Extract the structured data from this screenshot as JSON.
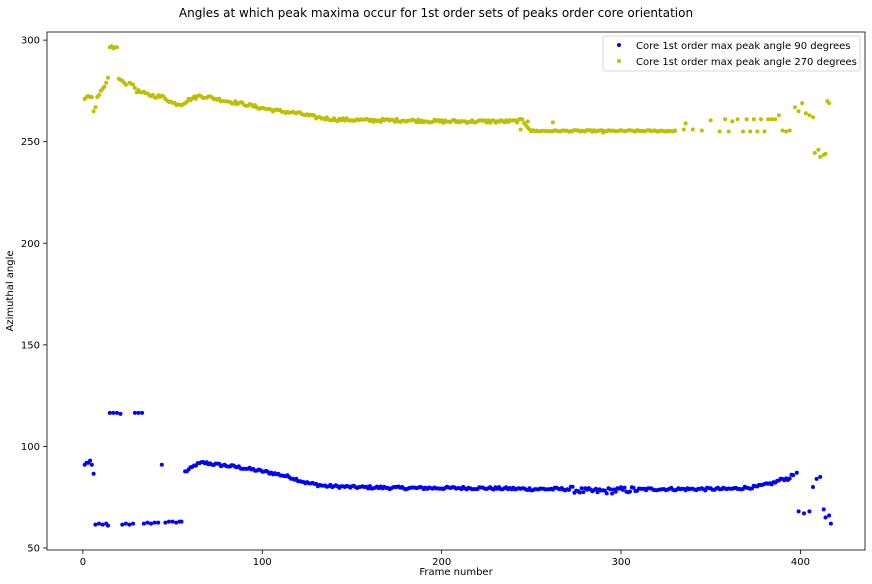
{
  "chart_data": {
    "type": "scatter",
    "title": "Angles at which peak maxima occur for 1st order sets of peaks order core orientation",
    "xlabel": "Frame number",
    "ylabel": "Azimuthal angle",
    "xlim": [
      -20,
      436
    ],
    "ylim": [
      49,
      304
    ],
    "xticks": [
      0,
      100,
      200,
      300,
      400
    ],
    "yticks": [
      50,
      100,
      150,
      200,
      250,
      300
    ],
    "legend_position": "top-right",
    "grid": false,
    "series": [
      {
        "name": "Core 1st order max peak angle 90 degrees",
        "color": "#0000ff",
        "keypoints": [
          [
            1,
            91
          ],
          [
            2,
            92
          ],
          [
            4,
            93
          ],
          [
            5,
            91
          ],
          [
            6,
            86.5
          ],
          [
            7,
            61.5
          ],
          [
            9,
            62
          ],
          [
            11,
            61.5
          ],
          [
            13,
            62
          ],
          [
            14,
            61
          ],
          [
            15,
            116.5
          ],
          [
            17,
            116.5
          ],
          [
            19,
            116.5
          ],
          [
            21,
            116
          ],
          [
            22,
            61.5
          ],
          [
            24,
            62
          ],
          [
            26,
            61.5
          ],
          [
            28,
            62
          ],
          [
            29,
            116.5
          ],
          [
            31,
            116.5
          ],
          [
            33,
            116.5
          ],
          [
            34,
            62
          ],
          [
            40,
            62.5
          ],
          [
            44,
            91
          ],
          [
            46,
            62.5
          ],
          [
            50,
            63
          ],
          [
            55,
            63
          ],
          [
            57,
            87.5
          ],
          [
            60,
            89
          ],
          [
            63,
            91
          ],
          [
            67,
            92
          ],
          [
            75,
            91
          ],
          [
            85,
            90
          ],
          [
            95,
            88.5
          ],
          [
            105,
            87
          ],
          [
            115,
            85
          ],
          [
            125,
            82
          ],
          [
            135,
            80.5
          ],
          [
            150,
            80
          ],
          [
            180,
            79.5
          ],
          [
            220,
            79.5
          ],
          [
            250,
            79
          ],
          [
            270,
            79
          ],
          [
            280,
            78
          ],
          [
            290,
            78
          ],
          [
            300,
            78.5
          ],
          [
            320,
            79
          ],
          [
            360,
            79
          ],
          [
            375,
            80
          ],
          [
            385,
            82
          ],
          [
            390,
            84
          ],
          [
            393,
            84
          ],
          [
            396,
            86
          ],
          [
            398,
            87
          ],
          [
            399,
            68
          ],
          [
            402,
            67
          ],
          [
            405,
            68
          ],
          [
            407,
            80
          ],
          [
            409,
            84
          ],
          [
            411,
            85
          ],
          [
            413,
            69
          ],
          [
            414,
            65
          ],
          [
            416,
            66
          ],
          [
            417,
            62
          ]
        ],
        "samples": [
          [
            1,
            91
          ],
          [
            2,
            92
          ],
          [
            3,
            92
          ],
          [
            4,
            93
          ],
          [
            5,
            91
          ],
          [
            6,
            86.5
          ],
          [
            7,
            61.5
          ],
          [
            9,
            62
          ],
          [
            11,
            61.5
          ],
          [
            13,
            62
          ],
          [
            14,
            61
          ],
          [
            15,
            116.5
          ],
          [
            17,
            116.5
          ],
          [
            19,
            116.5
          ],
          [
            21,
            116
          ],
          [
            22,
            61.5
          ],
          [
            24,
            62
          ],
          [
            26,
            61.5
          ],
          [
            28,
            62
          ],
          [
            29,
            116.5
          ],
          [
            31,
            116.5
          ],
          [
            33,
            116.5
          ],
          [
            34,
            62
          ],
          [
            36,
            62.5
          ],
          [
            38,
            62
          ],
          [
            40,
            62.5
          ],
          [
            42,
            62.5
          ],
          [
            44,
            91
          ],
          [
            46,
            62.5
          ],
          [
            48,
            63
          ],
          [
            50,
            63
          ],
          [
            52,
            62.5
          ],
          [
            54,
            63
          ],
          [
            55,
            63
          ]
        ]
      },
      {
        "name": "Core 1st order max peak angle 270 degrees",
        "color": "#bfbf00",
        "keypoints": [
          [
            1,
            271
          ],
          [
            3,
            272.5
          ],
          [
            5,
            272
          ],
          [
            6,
            265
          ],
          [
            7,
            267
          ],
          [
            8,
            272
          ],
          [
            10,
            275
          ],
          [
            12,
            277
          ],
          [
            14,
            281.5
          ],
          [
            15,
            296.5
          ],
          [
            17,
            296
          ],
          [
            19,
            296.5
          ],
          [
            20,
            281
          ],
          [
            22,
            280
          ],
          [
            24,
            278
          ],
          [
            26,
            279
          ],
          [
            28,
            278
          ],
          [
            30,
            275
          ],
          [
            35,
            273.5
          ],
          [
            40,
            272.5
          ],
          [
            45,
            272
          ],
          [
            50,
            269
          ],
          [
            55,
            268.5
          ],
          [
            60,
            271
          ],
          [
            65,
            272.5
          ],
          [
            70,
            272
          ],
          [
            80,
            270
          ],
          [
            90,
            268.5
          ],
          [
            100,
            266.5
          ],
          [
            110,
            265
          ],
          [
            120,
            264
          ],
          [
            130,
            262
          ],
          [
            140,
            261
          ],
          [
            160,
            260.5
          ],
          [
            180,
            260.5
          ],
          [
            200,
            260
          ],
          [
            220,
            260
          ],
          [
            240,
            260
          ],
          [
            245,
            260.5
          ],
          [
            250,
            255.5
          ],
          [
            260,
            255.5
          ],
          [
            270,
            255.5
          ],
          [
            280,
            255
          ],
          [
            300,
            255.5
          ],
          [
            320,
            255.5
          ],
          [
            340,
            255.5
          ],
          [
            360,
            255
          ],
          [
            380,
            255
          ],
          [
            390,
            255.5
          ],
          [
            395,
            255
          ],
          [
            397,
            267
          ],
          [
            399,
            265
          ],
          [
            401,
            269
          ],
          [
            403,
            264
          ],
          [
            405,
            263
          ],
          [
            407,
            262
          ],
          [
            408,
            244.5
          ],
          [
            410,
            246
          ],
          [
            411,
            242.5
          ],
          [
            413,
            243.5
          ],
          [
            414,
            244
          ],
          [
            415,
            270
          ],
          [
            416,
            269
          ]
        ],
        "samples": [
          [
            1,
            271
          ],
          [
            2,
            272
          ],
          [
            3,
            272.5
          ],
          [
            4,
            272
          ],
          [
            5,
            272
          ],
          [
            6,
            265
          ],
          [
            7,
            267
          ],
          [
            8,
            272
          ],
          [
            9,
            273
          ],
          [
            10,
            275
          ],
          [
            11,
            276
          ],
          [
            12,
            277
          ],
          [
            13,
            279
          ],
          [
            14,
            281.5
          ],
          [
            15,
            296.5
          ],
          [
            16,
            297
          ],
          [
            17,
            296
          ],
          [
            18,
            296.5
          ],
          [
            19,
            296.5
          ],
          [
            20,
            281
          ],
          [
            21,
            280.5
          ],
          [
            22,
            280
          ],
          [
            23,
            279
          ],
          [
            24,
            278
          ],
          [
            26,
            279
          ],
          [
            27,
            278.5
          ],
          [
            28,
            278
          ],
          [
            330,
            255.5
          ],
          [
            335,
            256
          ],
          [
            336,
            259
          ],
          [
            340,
            256
          ],
          [
            345,
            255.5
          ],
          [
            350,
            260.5
          ],
          [
            355,
            255
          ],
          [
            358,
            261
          ],
          [
            360,
            255
          ],
          [
            362,
            260
          ],
          [
            365,
            261
          ],
          [
            368,
            255
          ],
          [
            370,
            261
          ],
          [
            372,
            255
          ],
          [
            374,
            261
          ],
          [
            376,
            255
          ],
          [
            378,
            261
          ],
          [
            380,
            255
          ],
          [
            382,
            261
          ],
          [
            384,
            261
          ],
          [
            386,
            261
          ],
          [
            388,
            263
          ],
          [
            390,
            255.5
          ],
          [
            392,
            255
          ],
          [
            394,
            255.5
          ]
        ],
        "scatter_band_1": {
          "from": 250,
          "to": 395,
          "upper": 260.5,
          "lower": 255.5
        },
        "scatter_band_2": {
          "from": 200,
          "to": 245,
          "upper": 261,
          "lower": 259.5
        }
      }
    ]
  }
}
